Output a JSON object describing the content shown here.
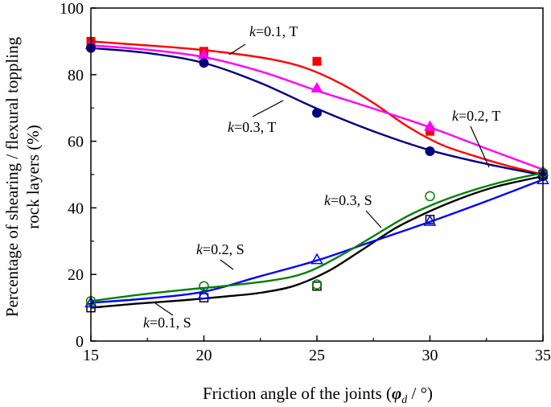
{
  "chart_data": {
    "type": "line",
    "xlabel": "Friction angle of the joints (φd / °)",
    "xlabel_parts": {
      "pre": "Friction angle of the joints (",
      "symbol": "φ",
      "subscript": "d",
      "post": " / °)"
    },
    "ylabel_line1": "Percentage of shearing / flexural toppling",
    "ylabel_line2": "rock layers (%)",
    "xlim": [
      15,
      35
    ],
    "ylim": [
      0,
      100
    ],
    "x_ticks": [
      15,
      20,
      25,
      30,
      35
    ],
    "y_ticks": [
      0,
      20,
      40,
      60,
      80,
      100
    ],
    "grid": false,
    "legend": "none",
    "series": [
      {
        "label": {
          "italic": "k",
          "rest": "=0.1, T"
        },
        "marker": "square-filled",
        "color": "#ff0000",
        "x": [
          15,
          20,
          25,
          30,
          35
        ],
        "points": [
          90,
          87,
          84,
          63,
          50
        ],
        "curve": [
          [
            15,
            90
          ],
          [
            17,
            89
          ],
          [
            19,
            88
          ],
          [
            21,
            86.6
          ],
          [
            23,
            84.6
          ],
          [
            24.5,
            82
          ],
          [
            26,
            77.5
          ],
          [
            27.5,
            71.5
          ],
          [
            29,
            64.5
          ],
          [
            30.5,
            59
          ],
          [
            32,
            55.5
          ],
          [
            33.5,
            52.5
          ],
          [
            35,
            50
          ]
        ]
      },
      {
        "label": {
          "italic": "k",
          "rest": "=0.2, T"
        },
        "marker": "triangle-filled",
        "color": "#ff00ff",
        "x": [
          15,
          20,
          25,
          30,
          35
        ],
        "points": [
          89,
          86,
          76,
          64.5,
          51
        ],
        "curve": [
          [
            15,
            88.8
          ],
          [
            17.5,
            87.5
          ],
          [
            20,
            85.3
          ],
          [
            22.5,
            81
          ],
          [
            25,
            75.2
          ],
          [
            27.5,
            69.8
          ],
          [
            30,
            64.2
          ],
          [
            32.5,
            57.8
          ],
          [
            35,
            51.5
          ]
        ]
      },
      {
        "label": {
          "italic": "k",
          "rest": "=0.3, T"
        },
        "marker": "circle-filled",
        "color": "#000080",
        "x": [
          15,
          20,
          25,
          30,
          35
        ],
        "points": [
          88,
          83.5,
          68.5,
          57,
          49.5
        ],
        "curve": [
          [
            15,
            88
          ],
          [
            17.5,
            86.5
          ],
          [
            20,
            83.5
          ],
          [
            22.5,
            77.5
          ],
          [
            25,
            69.8
          ],
          [
            27.5,
            63
          ],
          [
            30,
            57.3
          ],
          [
            32.5,
            53.2
          ],
          [
            35,
            49.8
          ]
        ]
      },
      {
        "label": {
          "italic": "k",
          "rest": "=0.1, S"
        },
        "marker": "square-open",
        "color": "#000000",
        "x": [
          15,
          20,
          25,
          30,
          35
        ],
        "points": [
          10,
          13,
          16.5,
          36.5,
          50
        ],
        "curve": [
          [
            15,
            10
          ],
          [
            17,
            11.2
          ],
          [
            19,
            12.2
          ],
          [
            21,
            13.4
          ],
          [
            22.5,
            14.5
          ],
          [
            24,
            16.6
          ],
          [
            25.5,
            21
          ],
          [
            27,
            27.4
          ],
          [
            28.5,
            34
          ],
          [
            30,
            39
          ],
          [
            31.5,
            43.2
          ],
          [
            33,
            46.5
          ],
          [
            35,
            49.5
          ]
        ]
      },
      {
        "label": {
          "italic": "k",
          "rest": "=0.2, S"
        },
        "marker": "triangle-open",
        "color": "#0000ff",
        "x": [
          15,
          20,
          25,
          30,
          35
        ],
        "points": [
          11.5,
          14,
          24.5,
          36,
          48.5
        ],
        "curve": [
          [
            15,
            11.5
          ],
          [
            17.5,
            12.8
          ],
          [
            20,
            14.8
          ],
          [
            22.5,
            19.5
          ],
          [
            25,
            24.2
          ],
          [
            27.5,
            30
          ],
          [
            30,
            35.8
          ],
          [
            32.5,
            42
          ],
          [
            35,
            48.5
          ]
        ]
      },
      {
        "label": {
          "italic": "k",
          "rest": "=0.3, S"
        },
        "marker": "circle-open",
        "color": "#008000",
        "x": [
          15,
          20,
          25,
          30,
          35
        ],
        "points": [
          12,
          16.5,
          17,
          43.5,
          50.5
        ],
        "curve": [
          [
            15,
            12
          ],
          [
            17,
            13.8
          ],
          [
            19,
            15.3
          ],
          [
            21,
            16.6
          ],
          [
            23,
            18.2
          ],
          [
            24.5,
            20.5
          ],
          [
            26,
            25.5
          ],
          [
            27.5,
            31.5
          ],
          [
            29,
            37.5
          ],
          [
            30.5,
            42
          ],
          [
            32,
            45.5
          ],
          [
            33.5,
            48.3
          ],
          [
            35,
            50.5
          ]
        ]
      }
    ]
  }
}
